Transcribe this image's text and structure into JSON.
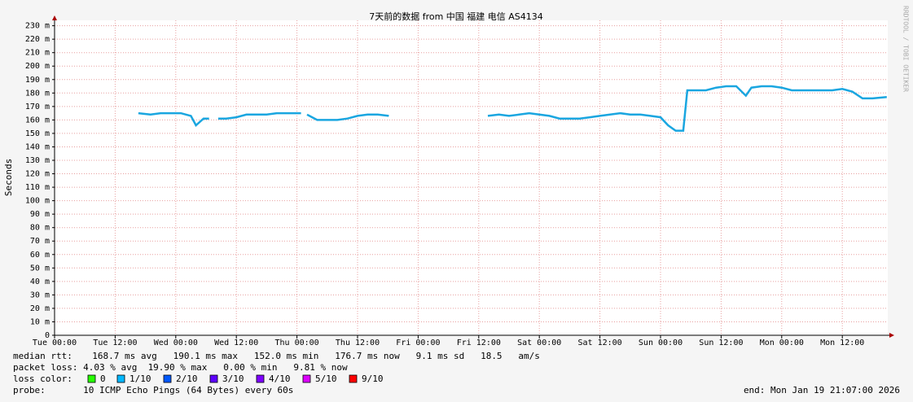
{
  "chart_data": {
    "type": "line",
    "title": "7天前的数据 from 中国 福建 电信 AS4134",
    "y_label": "Seconds",
    "watermark": "RRDTOOL / TOBI OETIKER",
    "x": [
      16.6,
      19,
      21,
      23,
      25,
      27,
      28,
      29.5,
      30.6,
      31.5,
      32.4,
      34,
      36,
      38,
      40,
      42,
      44,
      46,
      48.8,
      49.4,
      50,
      52,
      54,
      56,
      58,
      60,
      62,
      64,
      66.2,
      75,
      85.8,
      88,
      90,
      92,
      94,
      96,
      98,
      100,
      102,
      104,
      106,
      108,
      110,
      112,
      114,
      116,
      118,
      120,
      121.5,
      123,
      124.5,
      125.3,
      127,
      129,
      131,
      133,
      135,
      136.9,
      138,
      140,
      142,
      144,
      146,
      148,
      150,
      152,
      154,
      156,
      158,
      160,
      162,
      164.8
    ],
    "series": [
      {
        "name": "median rtt:",
        "color": "#1aa6e0",
        "values": [
          165,
          164,
          165,
          165,
          165,
          163,
          156,
          161,
          161,
          null,
          161,
          161,
          162,
          164,
          164,
          164,
          165,
          165,
          165,
          null,
          164,
          160,
          160,
          160,
          161,
          163,
          164,
          164,
          163,
          null,
          163,
          164,
          163,
          164,
          165,
          164,
          163,
          161,
          161,
          161,
          162,
          163,
          164,
          165,
          164,
          164,
          163,
          162,
          156,
          152,
          152,
          182,
          182,
          182,
          184,
          185,
          185,
          178,
          184,
          185,
          185,
          184,
          182,
          182,
          182,
          182,
          182,
          183,
          181,
          176,
          176,
          177
        ]
      }
    ],
    "xlim": [
      0,
      165
    ],
    "xticks": [
      {
        "value": 0,
        "label": "Tue 00:00"
      },
      {
        "value": 12,
        "label": "Tue 12:00"
      },
      {
        "value": 24,
        "label": "Wed 00:00"
      },
      {
        "value": 36,
        "label": "Wed 12:00"
      },
      {
        "value": 48,
        "label": "Thu 00:00"
      },
      {
        "value": 60,
        "label": "Thu 12:00"
      },
      {
        "value": 72,
        "label": "Fri 00:00"
      },
      {
        "value": 84,
        "label": "Fri 12:00"
      },
      {
        "value": 96,
        "label": "Sat 00:00"
      },
      {
        "value": 108,
        "label": "Sat 12:00"
      },
      {
        "value": 120,
        "label": "Sun 00:00"
      },
      {
        "value": 132,
        "label": "Sun 12:00"
      },
      {
        "value": 144,
        "label": "Mon 00:00"
      },
      {
        "value": 156,
        "label": "Mon 12:00"
      }
    ],
    "ylim": [
      0,
      234
    ],
    "yticks": [
      0,
      {
        "value": 10,
        "label": "10 m"
      },
      {
        "value": 20,
        "label": "20 m"
      },
      {
        "value": 30,
        "label": "30 m"
      },
      {
        "value": 40,
        "label": "40 m"
      },
      {
        "value": 50,
        "label": "50 m"
      },
      {
        "value": 60,
        "label": "60 m"
      },
      {
        "value": 70,
        "label": "70 m"
      },
      {
        "value": 80,
        "label": "80 m"
      },
      {
        "value": 90,
        "label": "90 m"
      },
      {
        "value": 100,
        "label": "100 m"
      },
      {
        "value": 110,
        "label": "110 m"
      },
      {
        "value": 120,
        "label": "120 m"
      },
      {
        "value": 130,
        "label": "130 m"
      },
      {
        "value": 140,
        "label": "140 m"
      },
      {
        "value": 150,
        "label": "150 m"
      },
      {
        "value": 160,
        "label": "160 m"
      },
      {
        "value": 170,
        "label": "170 m"
      },
      {
        "value": 180,
        "label": "180 m"
      },
      {
        "value": 190,
        "label": "190 m"
      },
      {
        "value": 200,
        "label": "200 m"
      },
      {
        "value": 210,
        "label": "210 m"
      },
      {
        "value": 220,
        "label": "220 m"
      },
      {
        "value": 230,
        "label": "230 m"
      }
    ],
    "grid": true,
    "stats": [
      "  168.7 ms avg   190.1 ms max   152.0 ms min   176.7 ms now   9.1 ms sd   18.5   am/s",
      "packet loss: 4.03 % avg  19.90 % max   0.00 % min   9.81 % now"
    ],
    "loss_title": "loss color:",
    "loss_legend": [
      {
        "name": "0",
        "color": "#26ff00"
      },
      {
        "name": "1/10",
        "color": "#00b8ff"
      },
      {
        "name": "2/10",
        "color": "#0059ff"
      },
      {
        "name": "3/10",
        "color": "#5e00ff"
      },
      {
        "name": "4/10",
        "color": "#7e00ff"
      },
      {
        "name": "5/10",
        "color": "#dd00ff"
      },
      {
        "name": "9/10",
        "color": "#ff0000"
      }
    ],
    "probe": "probe:       10 ICMP Echo Pings (64 Bytes) every 60s",
    "end": "end: Mon Jan 19 21:07:00 2026"
  }
}
